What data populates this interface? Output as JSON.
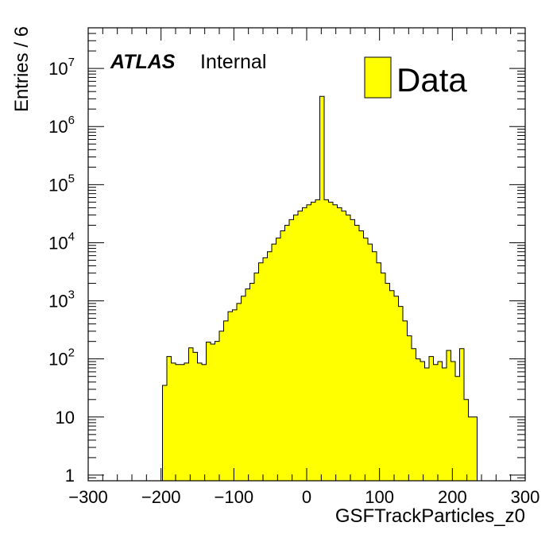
{
  "chart_data": {
    "type": "histogram",
    "title": "",
    "xlabel": "GSFTrackParticles_z0",
    "ylabel": "Entries / 6",
    "xlim": [
      -300,
      300
    ],
    "ylim": [
      0.8,
      50000000
    ],
    "y_scale": "log",
    "x_ticks": [
      "−300",
      "−200",
      "−100",
      "0",
      "100",
      "200",
      "300"
    ],
    "y_ticks": [
      {
        "value": 1,
        "base": "1",
        "exp": ""
      },
      {
        "value": 10,
        "base": "10",
        "exp": ""
      },
      {
        "value": 100,
        "base": "10",
        "exp": "2"
      },
      {
        "value": 1000,
        "base": "10",
        "exp": "3"
      },
      {
        "value": 10000,
        "base": "10",
        "exp": "4"
      },
      {
        "value": 100000,
        "base": "10",
        "exp": "5"
      },
      {
        "value": 1000000,
        "base": "10",
        "exp": "6"
      },
      {
        "value": 10000000,
        "base": "10",
        "exp": "7"
      }
    ],
    "bin_width": 6,
    "bin_start": -198,
    "series": [
      {
        "name": "Data",
        "color": "#ffff00",
        "values": [
          35,
          110,
          85,
          80,
          80,
          85,
          155,
          130,
          85,
          80,
          195,
          180,
          200,
          300,
          450,
          650,
          700,
          900,
          1200,
          1600,
          2000,
          3000,
          4500,
          5500,
          7000,
          9500,
          12000,
          16000,
          20000,
          25000,
          30000,
          35000,
          40000,
          45000,
          50000,
          55000,
          3300000,
          55000,
          50000,
          45000,
          40000,
          35000,
          30000,
          25000,
          20000,
          16000,
          12000,
          9500,
          7000,
          4500,
          3000,
          2000,
          1500,
          1200,
          800,
          450,
          250,
          150,
          100,
          90,
          70,
          110,
          80,
          90,
          70,
          140,
          90,
          50,
          150,
          20,
          10,
          10
        ]
      }
    ],
    "legend": {
      "position": "top-right",
      "entries": [
        "Data"
      ]
    },
    "annotations": {
      "atlas": "ATLAS",
      "status": "Internal"
    },
    "grid": false
  }
}
